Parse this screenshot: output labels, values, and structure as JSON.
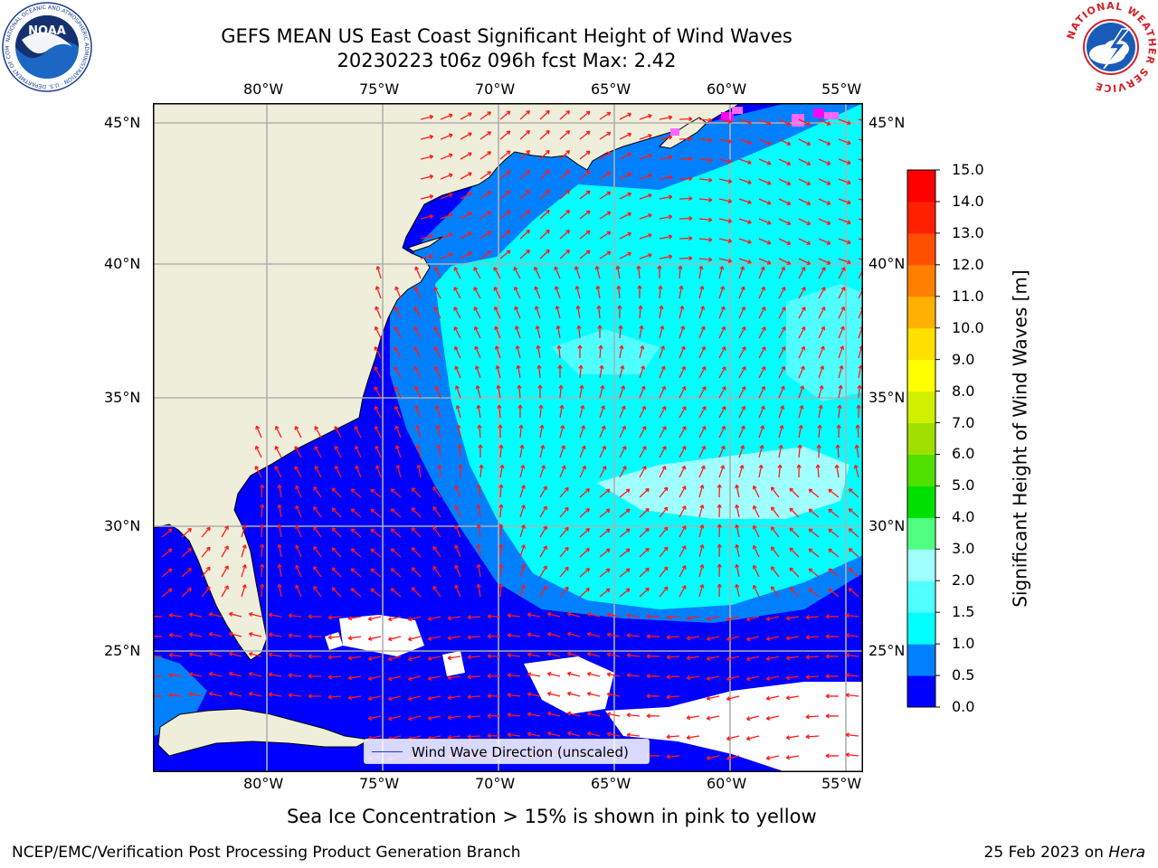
{
  "header": {
    "title": "GEFS MEAN US East Coast Significant Height of Wind Waves",
    "subtitle": "20230223 t06z 096h fcst   Max: 2.42"
  },
  "logos": {
    "noaa": {
      "text": "NOAA",
      "ring_text": "NATIONAL OCEANIC AND ATMOSPHERIC ADMINISTRATION · U.S. DEPARTMENT OF COMMERCE"
    },
    "nws": {
      "ring_text": "NATIONAL WEATHER SERVICE"
    }
  },
  "map": {
    "lon_labels": [
      "80°W",
      "75°W",
      "70°W",
      "65°W",
      "60°W",
      "55°W"
    ],
    "lat_labels": [
      "45°N",
      "40°N",
      "35°N",
      "30°N",
      "25°N"
    ],
    "legend": "Wind Wave Direction (unscaled)",
    "extent": {
      "lon_min": -85,
      "lon_max": -54.5,
      "lat_min": 20,
      "lat_max": 46
    },
    "colors": {
      "land": "#efeedb",
      "ocean_default": "#0000ff"
    }
  },
  "chart_data": {
    "type": "heatmap",
    "colorbar": {
      "label": "Significant Height of Wind Waves [m]",
      "tick_labels": [
        "0.0",
        "0.5",
        "1.0",
        "1.5",
        "2.0",
        "3.0",
        "4.0",
        "5.0",
        "6.0",
        "7.0",
        "8.0",
        "9.0",
        "10.0",
        "11.0",
        "12.0",
        "13.0",
        "14.0",
        "15.0"
      ],
      "levels": [
        0,
        0.5,
        1,
        1.5,
        2,
        3,
        4,
        5,
        6,
        7,
        8,
        9,
        10,
        11,
        12,
        13,
        14,
        15
      ],
      "colors": [
        "#0000ff",
        "#0080ff",
        "#00ffff",
        "#50ffff",
        "#a0ffff",
        "#50ff80",
        "#00e000",
        "#50e000",
        "#a0e000",
        "#d0f000",
        "#ffff00",
        "#ffe000",
        "#ffb000",
        "#ff8000",
        "#ff5000",
        "#ff2000",
        "#ff0000"
      ]
    }
  },
  "notes": {
    "sea_ice": "Sea Ice Concentration > 15% is shown in pink to yellow"
  },
  "footer": {
    "left": "NCEP/EMC/Verification Post Processing Product Generation Branch",
    "date": "25 Feb 2023 on ",
    "machine": "Hera"
  }
}
